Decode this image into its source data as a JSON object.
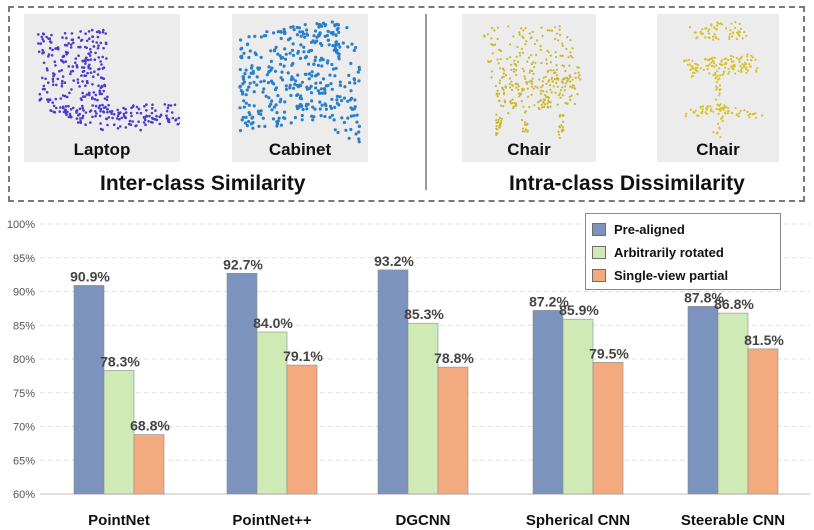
{
  "panel": {
    "thumbnails": [
      {
        "label": "Laptop",
        "color": "#4a3ccc"
      },
      {
        "label": "Cabinet",
        "color": "#2a80c8"
      },
      {
        "label": "Chair",
        "color": "#c9b82c"
      },
      {
        "label": "Chair",
        "color": "#d4c22a"
      }
    ],
    "group_titles": [
      "Inter-class Similarity",
      "Intra-class Dissimilarity"
    ]
  },
  "chart_data": {
    "type": "bar",
    "title": "",
    "xlabel": "",
    "ylabel": "",
    "categories": [
      "PointNet",
      "PointNet++",
      "DGCNN",
      "Spherical CNN",
      "Steerable CNN"
    ],
    "series": [
      {
        "name": "Pre-aligned",
        "color": "#7b93bd",
        "values": [
          90.9,
          92.7,
          93.2,
          87.2,
          87.8
        ],
        "labels": [
          "90.9%",
          "92.7%",
          "93.2%",
          "87.2%",
          "87.8%"
        ]
      },
      {
        "name": "Arbitrarily rotated",
        "color": "#cfeab5",
        "values": [
          78.3,
          84.0,
          85.3,
          85.9,
          86.8
        ],
        "labels": [
          "78.3%",
          "84.0%",
          "85.3%",
          "85.9%",
          "86.8%"
        ]
      },
      {
        "name": "Single-view partial",
        "color": "#f4aa7f",
        "values": [
          68.8,
          79.1,
          78.8,
          79.5,
          81.5
        ],
        "labels": [
          "68.8%",
          "79.1%",
          "78.8%",
          "79.5%",
          "81.5%"
        ]
      }
    ],
    "ylim": [
      60,
      100
    ],
    "yticks": [
      "60%",
      "65%",
      "70%",
      "75%",
      "80%",
      "85%",
      "90%",
      "95%",
      "100%"
    ],
    "ytick_values": [
      60,
      65,
      70,
      75,
      80,
      85,
      90,
      95,
      100
    ],
    "grid": true,
    "legend_position": "top-right"
  }
}
